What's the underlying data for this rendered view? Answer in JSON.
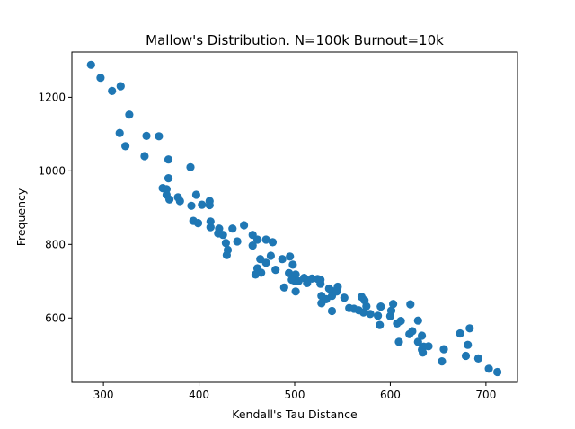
{
  "chart_data": {
    "type": "scatter",
    "title": "Mallow's Distribution. N=100k Burnout=10k",
    "xlabel": "Kendall's Tau Distance",
    "ylabel": "Frequency",
    "xlim": [
      267,
      733
    ],
    "ylim": [
      425,
      1323
    ],
    "xticks": [
      300,
      400,
      500,
      600,
      700
    ],
    "yticks": [
      600,
      800,
      1000,
      1200
    ],
    "grid": false,
    "point_color": "#1f77b4",
    "points": [
      [
        287,
        1288
      ],
      [
        297,
        1253
      ],
      [
        309,
        1217
      ],
      [
        318,
        1230
      ],
      [
        327,
        1153
      ],
      [
        317,
        1103
      ],
      [
        323,
        1067
      ],
      [
        345,
        1095
      ],
      [
        358,
        1094
      ],
      [
        343,
        1040
      ],
      [
        391,
        1010
      ],
      [
        368,
        1031
      ],
      [
        368,
        980
      ],
      [
        362,
        953
      ],
      [
        366,
        950
      ],
      [
        366,
        935
      ],
      [
        369,
        922
      ],
      [
        378,
        928
      ],
      [
        380,
        918
      ],
      [
        392,
        905
      ],
      [
        397,
        935
      ],
      [
        403,
        908
      ],
      [
        411,
        918
      ],
      [
        411,
        907
      ],
      [
        394,
        864
      ],
      [
        399,
        858
      ],
      [
        412,
        847
      ],
      [
        412,
        862
      ],
      [
        421,
        843
      ],
      [
        420,
        830
      ],
      [
        425,
        826
      ],
      [
        435,
        843
      ],
      [
        447,
        852
      ],
      [
        440,
        808
      ],
      [
        428,
        804
      ],
      [
        430,
        785
      ],
      [
        429,
        771
      ],
      [
        456,
        826
      ],
      [
        456,
        797
      ],
      [
        461,
        813
      ],
      [
        470,
        813
      ],
      [
        477,
        806
      ],
      [
        464,
        760
      ],
      [
        470,
        750
      ],
      [
        461,
        735
      ],
      [
        465,
        723
      ],
      [
        459,
        718
      ],
      [
        475,
        769
      ],
      [
        480,
        731
      ],
      [
        487,
        760
      ],
      [
        495,
        767
      ],
      [
        498,
        745
      ],
      [
        494,
        722
      ],
      [
        501,
        718
      ],
      [
        500,
        701
      ],
      [
        497,
        704
      ],
      [
        504,
        700
      ],
      [
        510,
        709
      ],
      [
        513,
        695
      ],
      [
        518,
        707
      ],
      [
        524,
        706
      ],
      [
        527,
        693
      ],
      [
        527,
        704
      ],
      [
        489,
        683
      ],
      [
        501,
        672
      ],
      [
        528,
        660
      ],
      [
        528,
        640
      ],
      [
        533,
        651
      ],
      [
        536,
        680
      ],
      [
        539,
        673
      ],
      [
        539,
        660
      ],
      [
        545,
        685
      ],
      [
        544,
        672
      ],
      [
        539,
        619
      ],
      [
        552,
        655
      ],
      [
        557,
        627
      ],
      [
        570,
        657
      ],
      [
        562,
        625
      ],
      [
        567,
        621
      ],
      [
        573,
        648
      ],
      [
        575,
        632
      ],
      [
        572,
        615
      ],
      [
        579,
        611
      ],
      [
        590,
        631
      ],
      [
        587,
        606
      ],
      [
        589,
        581
      ],
      [
        600,
        605
      ],
      [
        601,
        620
      ],
      [
        603,
        638
      ],
      [
        607,
        585
      ],
      [
        611,
        592
      ],
      [
        609,
        535
      ],
      [
        620,
        556
      ],
      [
        621,
        637
      ],
      [
        623,
        564
      ],
      [
        629,
        593
      ],
      [
        633,
        552
      ],
      [
        629,
        535
      ],
      [
        635,
        522
      ],
      [
        633,
        514
      ],
      [
        634,
        506
      ],
      [
        640,
        523
      ],
      [
        654,
        482
      ],
      [
        656,
        515
      ],
      [
        673,
        558
      ],
      [
        679,
        497
      ],
      [
        683,
        572
      ],
      [
        681,
        527
      ],
      [
        692,
        490
      ],
      [
        703,
        462
      ],
      [
        712,
        453
      ]
    ]
  }
}
